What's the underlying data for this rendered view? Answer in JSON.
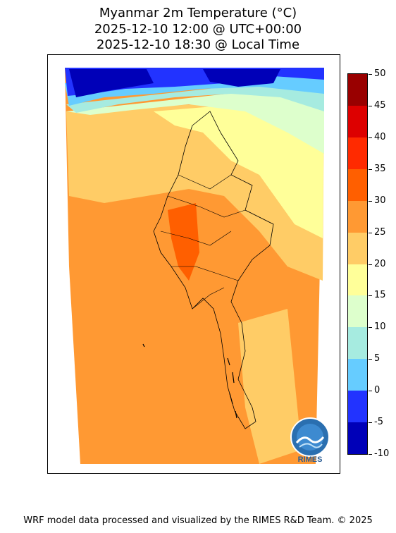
{
  "header": {
    "title_line1": "Myanmar 2m Temperature (°C)",
    "title_line2": "2025-12-10 12:00 @ UTC+00:00",
    "title_line3": "2025-12-10 18:30 @ Local Time"
  },
  "colorbar": {
    "tick_labels": [
      "50",
      "45",
      "40",
      "35",
      "30",
      "25",
      "20",
      "15",
      "10",
      "5",
      "0",
      "-5",
      "-10"
    ],
    "bands": [
      {
        "range": "45-50",
        "color": "#990000"
      },
      {
        "range": "40-45",
        "color": "#dd0000"
      },
      {
        "range": "35-40",
        "color": "#ff2a00"
      },
      {
        "range": "30-35",
        "color": "#ff5f00"
      },
      {
        "range": "25-30",
        "color": "#ff9933"
      },
      {
        "range": "20-25",
        "color": "#ffcc66"
      },
      {
        "range": "15-20",
        "color": "#ffff99"
      },
      {
        "range": "10-15",
        "color": "#ddffcc"
      },
      {
        "range": "5-10",
        "color": "#a6ebe0"
      },
      {
        "range": "0-5",
        "color": "#66ccff"
      },
      {
        "range": "-5-0",
        "color": "#2233ff"
      },
      {
        "range": "-10--5",
        "color": "#0000b8"
      }
    ]
  },
  "map": {
    "region": "Myanmar",
    "variable": "2m Temperature"
  },
  "logo": {
    "text": "RIMES"
  },
  "footer": {
    "credit": "WRF model data processed and visualized by the RIMES R&D Team. © 2025"
  }
}
